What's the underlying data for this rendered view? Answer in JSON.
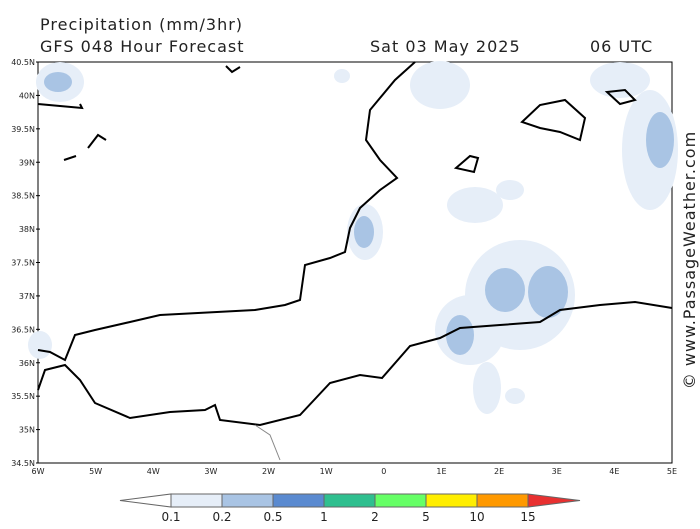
{
  "header": {
    "title": "Precipitation (mm/3hr)",
    "subtitle": "GFS 048 Hour Forecast",
    "date": "Sat 03 May 2025",
    "time": "06 UTC"
  },
  "map": {
    "lat_labels": [
      "40.5N",
      "40N",
      "39.5N",
      "39N",
      "38.5N",
      "38N",
      "37.5N",
      "37N",
      "36.5N",
      "36N",
      "35.5N",
      "35N",
      "34.5N"
    ],
    "lon_labels": [
      "6W",
      "5W",
      "4W",
      "3W",
      "2W",
      "1W",
      "0",
      "1E",
      "2E",
      "3E",
      "4E",
      "5E"
    ]
  },
  "legend": {
    "labels": [
      "0.1",
      "0.2",
      "0.5",
      "1",
      "2",
      "5",
      "10",
      "15"
    ],
    "colors": [
      "#ffffff",
      "#e6eef8",
      "#a9c4e4",
      "#5a8ad0",
      "#2fbf8f",
      "#66ff66",
      "#ffee00",
      "#ff9900",
      "#e83030"
    ]
  },
  "watermark": "© www.PassageWeather.com"
}
